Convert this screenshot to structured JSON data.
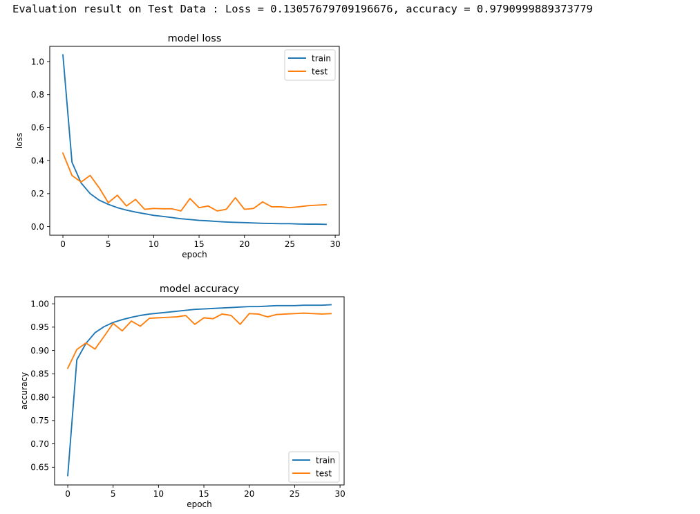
{
  "output": {
    "evaluation_text": "Evaluation result on Test Data : Loss = 0.13057679709196676, accuracy = 0.9790999889373779"
  },
  "chart_data": [
    {
      "type": "line",
      "title": "model loss",
      "xlabel": "epoch",
      "ylabel": "loss",
      "xlim": [
        -1.45,
        30.45
      ],
      "ylim": [
        -0.052,
        1.092
      ],
      "xticks": [
        0,
        5,
        10,
        15,
        20,
        25,
        30
      ],
      "yticks": [
        0.0,
        0.2,
        0.4,
        0.6,
        0.8,
        1.0
      ],
      "ytick_labels": [
        "0.0",
        "0.2",
        "0.4",
        "0.6",
        "0.8",
        "1.0"
      ],
      "legend": {
        "position": "top-right",
        "entries": [
          "train",
          "test"
        ]
      },
      "grid": false,
      "x": [
        0,
        1,
        2,
        3,
        4,
        5,
        6,
        7,
        8,
        9,
        10,
        11,
        12,
        13,
        14,
        15,
        16,
        17,
        18,
        19,
        20,
        21,
        22,
        23,
        24,
        25,
        26,
        27,
        28,
        29
      ],
      "series": [
        {
          "name": "train",
          "color": "#1f77b4",
          "values": [
            1.04,
            0.39,
            0.265,
            0.2,
            0.16,
            0.135,
            0.115,
            0.1,
            0.088,
            0.078,
            0.068,
            0.062,
            0.055,
            0.048,
            0.043,
            0.038,
            0.035,
            0.031,
            0.028,
            0.026,
            0.024,
            0.022,
            0.02,
            0.019,
            0.018,
            0.018,
            0.016,
            0.015,
            0.015,
            0.014
          ]
        },
        {
          "name": "test",
          "color": "#ff7f0e",
          "values": [
            0.445,
            0.31,
            0.27,
            0.31,
            0.235,
            0.145,
            0.19,
            0.125,
            0.165,
            0.105,
            0.11,
            0.108,
            0.108,
            0.095,
            0.17,
            0.115,
            0.125,
            0.095,
            0.105,
            0.175,
            0.105,
            0.11,
            0.15,
            0.12,
            0.12,
            0.115,
            0.12,
            0.127,
            0.13,
            0.133
          ]
        }
      ]
    },
    {
      "type": "line",
      "title": "model accuracy",
      "xlabel": "epoch",
      "ylabel": "accuracy",
      "xlim": [
        -1.45,
        30.45
      ],
      "ylim": [
        0.612,
        1.015
      ],
      "xticks": [
        0,
        5,
        10,
        15,
        20,
        25,
        30
      ],
      "yticks": [
        0.65,
        0.7,
        0.75,
        0.8,
        0.85,
        0.9,
        0.95,
        1.0
      ],
      "ytick_labels": [
        "0.65",
        "0.70",
        "0.75",
        "0.80",
        "0.85",
        "0.90",
        "0.95",
        "1.00"
      ],
      "legend": {
        "position": "bottom-right",
        "entries": [
          "train",
          "test"
        ]
      },
      "grid": false,
      "x": [
        0,
        1,
        2,
        3,
        4,
        5,
        6,
        7,
        8,
        9,
        10,
        11,
        12,
        13,
        14,
        15,
        16,
        17,
        18,
        19,
        20,
        21,
        22,
        23,
        24,
        25,
        26,
        27,
        28,
        29
      ],
      "series": [
        {
          "name": "train",
          "color": "#1f77b4",
          "values": [
            0.632,
            0.88,
            0.915,
            0.938,
            0.951,
            0.96,
            0.966,
            0.971,
            0.975,
            0.978,
            0.98,
            0.982,
            0.984,
            0.986,
            0.988,
            0.989,
            0.99,
            0.991,
            0.992,
            0.993,
            0.994,
            0.994,
            0.995,
            0.996,
            0.996,
            0.996,
            0.997,
            0.997,
            0.997,
            0.998
          ]
        },
        {
          "name": "test",
          "color": "#ff7f0e",
          "values": [
            0.862,
            0.902,
            0.916,
            0.903,
            0.93,
            0.958,
            0.942,
            0.963,
            0.952,
            0.969,
            0.97,
            0.971,
            0.972,
            0.975,
            0.956,
            0.97,
            0.968,
            0.978,
            0.975,
            0.956,
            0.979,
            0.978,
            0.972,
            0.977,
            0.978,
            0.979,
            0.98,
            0.979,
            0.978,
            0.979
          ]
        }
      ]
    }
  ]
}
